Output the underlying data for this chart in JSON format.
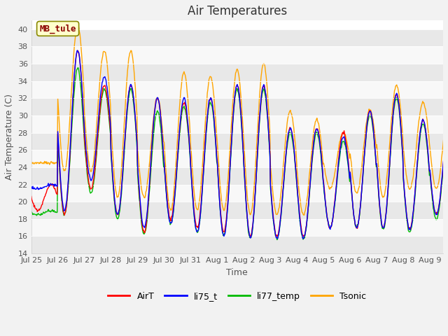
{
  "title": "Air Temperatures",
  "xlabel": "Time",
  "ylabel": "Air Temperature (C)",
  "ylim": [
    14,
    41
  ],
  "yticks": [
    14,
    16,
    18,
    20,
    22,
    24,
    26,
    28,
    30,
    32,
    34,
    36,
    38,
    40
  ],
  "annotation_text": "MB_tule",
  "series_colors": {
    "AirT": "#ff0000",
    "li75_t": "#0000ff",
    "li77_temp": "#00bb00",
    "Tsonic": "#ffa500"
  },
  "axes_facecolor": "#ffffff",
  "band_color_dark": "#e8e8e8",
  "band_color_light": "#f8f8f8",
  "title_fontsize": 12,
  "axis_label_fontsize": 9,
  "tick_label_fontsize": 8,
  "line_width": 1.0,
  "x_tick_labels": [
    "Jul 25",
    "Jul 26",
    "Jul 27",
    "Jul 28",
    "Jul 29",
    "Jul 30",
    "Jul 31",
    "Aug 1",
    "Aug 2",
    "Aug 3",
    "Aug 4",
    "Aug 5",
    "Aug 6",
    "Aug 7",
    "Aug 8",
    "Aug 9"
  ],
  "x_tick_positions": [
    0,
    1,
    2,
    3,
    4,
    5,
    6,
    7,
    8,
    9,
    10,
    11,
    12,
    13,
    14,
    15
  ],
  "day_maxima_airt": [
    22.0,
    37.5,
    33.5,
    33.5,
    32.0,
    31.5,
    32.0,
    33.5,
    33.5,
    28.5,
    28.5,
    28.0,
    30.5,
    32.5,
    29.5,
    29.5
  ],
  "day_minima_airt": [
    19.0,
    18.5,
    21.5,
    18.5,
    16.5,
    18.0,
    17.0,
    16.5,
    16.0,
    16.0,
    16.0,
    17.0,
    17.0,
    17.0,
    16.8,
    18.5
  ],
  "day_maxima_li75": [
    22.0,
    37.5,
    34.5,
    33.5,
    32.0,
    32.0,
    32.0,
    33.5,
    33.5,
    28.5,
    28.5,
    27.5,
    30.5,
    32.5,
    29.5,
    29.5
  ],
  "day_minima_li75": [
    21.5,
    19.0,
    22.5,
    18.5,
    17.0,
    17.5,
    16.5,
    16.0,
    15.8,
    15.8,
    15.8,
    17.0,
    17.0,
    17.0,
    16.8,
    18.5
  ],
  "day_maxima_li77": [
    19.0,
    35.5,
    33.0,
    33.0,
    30.5,
    31.0,
    31.5,
    33.0,
    33.0,
    28.0,
    28.0,
    27.0,
    30.0,
    32.0,
    29.0,
    29.0
  ],
  "day_minima_li77": [
    18.5,
    18.5,
    21.0,
    18.0,
    16.2,
    17.5,
    16.5,
    16.2,
    15.7,
    15.7,
    15.7,
    17.0,
    17.0,
    16.8,
    16.5,
    18.0
  ],
  "day_maxima_tsonic": [
    24.5,
    40.5,
    37.5,
    37.5,
    32.0,
    35.0,
    34.5,
    35.3,
    36.0,
    30.5,
    29.5,
    28.0,
    30.7,
    33.5,
    31.5,
    31.5
  ],
  "day_minima_tsonic": [
    24.5,
    23.5,
    23.5,
    20.5,
    20.5,
    19.0,
    19.0,
    19.0,
    18.5,
    18.5,
    18.5,
    21.5,
    21.0,
    20.5,
    21.5,
    21.5
  ]
}
